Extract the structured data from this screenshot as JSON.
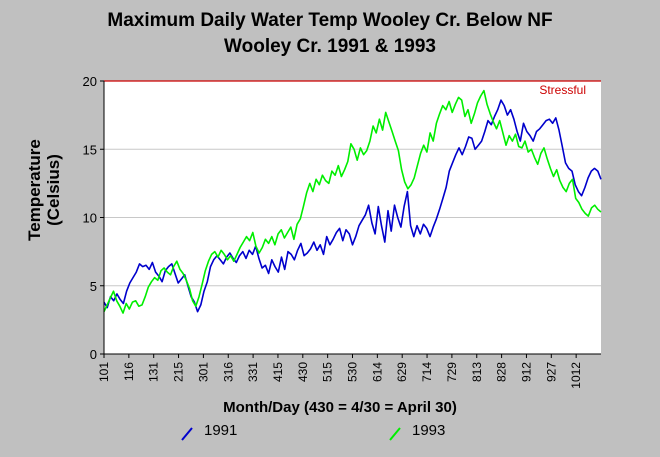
{
  "chart_data": {
    "type": "line",
    "title_lines": [
      "Maximum Daily Water Temp Wooley Cr. Below NF",
      "Wooley Cr. 1991 & 1993"
    ],
    "xlabel": "Month/Day (430 = 4/30 = April 30)",
    "ylabel_lines": [
      "Temperature",
      "(Celsius)"
    ],
    "ylim": [
      0,
      20
    ],
    "yticks": [
      0,
      5,
      10,
      15,
      20
    ],
    "x_tick_labels": [
      "101",
      "116",
      "131",
      "215",
      "301",
      "316",
      "331",
      "415",
      "430",
      "515",
      "530",
      "614",
      "629",
      "714",
      "729",
      "813",
      "828",
      "912",
      "927",
      "1012"
    ],
    "grid": true,
    "threshold": {
      "label": "Stressful",
      "value": 20,
      "color": "#cc0000"
    },
    "legend_position": "bottom",
    "series": [
      {
        "name": "1991",
        "color": "#0000cc",
        "values": [
          3.8,
          3.4,
          4.2,
          3.9,
          4.4,
          4.0,
          3.7,
          4.6,
          5.2,
          5.6,
          6.0,
          6.6,
          6.4,
          6.5,
          6.2,
          6.7,
          6.0,
          5.7,
          5.3,
          6.1,
          6.4,
          6.6,
          5.9,
          5.2,
          5.5,
          5.8,
          5.0,
          4.2,
          3.8,
          3.1,
          3.6,
          4.6,
          5.3,
          6.4,
          6.9,
          7.2,
          6.9,
          6.6,
          7.1,
          7.4,
          7.0,
          6.7,
          7.2,
          7.5,
          7.0,
          7.6,
          7.3,
          7.9,
          7.0,
          6.3,
          6.5,
          5.9,
          6.9,
          6.4,
          6.0,
          7.1,
          6.2,
          7.5,
          7.3,
          6.9,
          7.6,
          8.1,
          7.2,
          7.4,
          7.7,
          8.2,
          7.6,
          8.0,
          7.3,
          8.6,
          8.0,
          8.4,
          8.9,
          9.2,
          8.3,
          9.1,
          8.8,
          8.0,
          8.6,
          9.4,
          9.8,
          10.2,
          10.9,
          9.6,
          8.8,
          10.8,
          9.4,
          8.2,
          10.5,
          9.0,
          10.9,
          10.0,
          9.3,
          10.8,
          11.9,
          9.4,
          8.6,
          9.4,
          8.8,
          9.5,
          9.2,
          8.6,
          9.3,
          9.9,
          10.6,
          11.4,
          12.2,
          13.4,
          14.0,
          14.6,
          15.1,
          14.6,
          15.2,
          15.9,
          15.8,
          15.0,
          15.3,
          15.6,
          16.3,
          17.1,
          16.8,
          17.4,
          17.9,
          18.6,
          18.2,
          17.5,
          17.9,
          17.2,
          16.3,
          15.6,
          16.9,
          16.3,
          16.0,
          15.6,
          16.3,
          16.5,
          16.8,
          17.1,
          17.2,
          16.9,
          17.3,
          16.4,
          15.2,
          14.0,
          13.6,
          13.4,
          12.4,
          11.9,
          11.6,
          12.2,
          12.9,
          13.4,
          13.6,
          13.4,
          12.8
        ]
      },
      {
        "name": "1993",
        "color": "#00ee00",
        "values": [
          3.1,
          3.6,
          4.1,
          4.6,
          3.9,
          3.5,
          3.0,
          3.7,
          3.3,
          3.8,
          3.9,
          3.5,
          3.6,
          4.2,
          4.9,
          5.3,
          5.6,
          5.4,
          6.1,
          6.3,
          6.0,
          5.8,
          6.4,
          6.8,
          6.2,
          5.9,
          5.4,
          4.8,
          3.9,
          3.5,
          4.2,
          5.1,
          6.1,
          6.8,
          7.3,
          7.5,
          7.1,
          7.6,
          7.3,
          6.9,
          7.2,
          6.8,
          7.3,
          7.8,
          8.2,
          8.6,
          8.3,
          8.9,
          7.9,
          7.4,
          7.8,
          8.4,
          8.1,
          8.6,
          8.0,
          8.8,
          9.1,
          8.5,
          8.9,
          9.3,
          8.4,
          9.5,
          9.9,
          10.8,
          11.8,
          12.5,
          11.9,
          12.8,
          12.4,
          13.1,
          12.7,
          12.5,
          13.4,
          13.1,
          13.8,
          13.0,
          13.5,
          14.1,
          15.4,
          15.0,
          14.2,
          15.1,
          14.6,
          14.9,
          15.6,
          16.7,
          16.2,
          17.2,
          16.4,
          17.7,
          17.0,
          16.3,
          15.6,
          14.9,
          13.5,
          12.6,
          12.1,
          12.4,
          12.9,
          13.8,
          14.7,
          15.3,
          14.8,
          16.2,
          15.6,
          16.9,
          17.6,
          18.2,
          17.9,
          18.5,
          17.7,
          18.3,
          18.8,
          18.6,
          17.4,
          17.9,
          16.9,
          17.6,
          18.4,
          18.9,
          19.3,
          18.3,
          17.6,
          17.0,
          16.5,
          17.1,
          16.2,
          15.3,
          16.0,
          15.6,
          16.1,
          15.2,
          15.1,
          15.6,
          14.8,
          15.0,
          14.4,
          13.9,
          14.7,
          15.1,
          14.3,
          13.6,
          13.0,
          13.5,
          12.7,
          12.2,
          11.9,
          12.5,
          12.8,
          11.4,
          11.1,
          10.6,
          10.3,
          10.1,
          10.7,
          10.9,
          10.6,
          10.4
        ]
      }
    ]
  }
}
